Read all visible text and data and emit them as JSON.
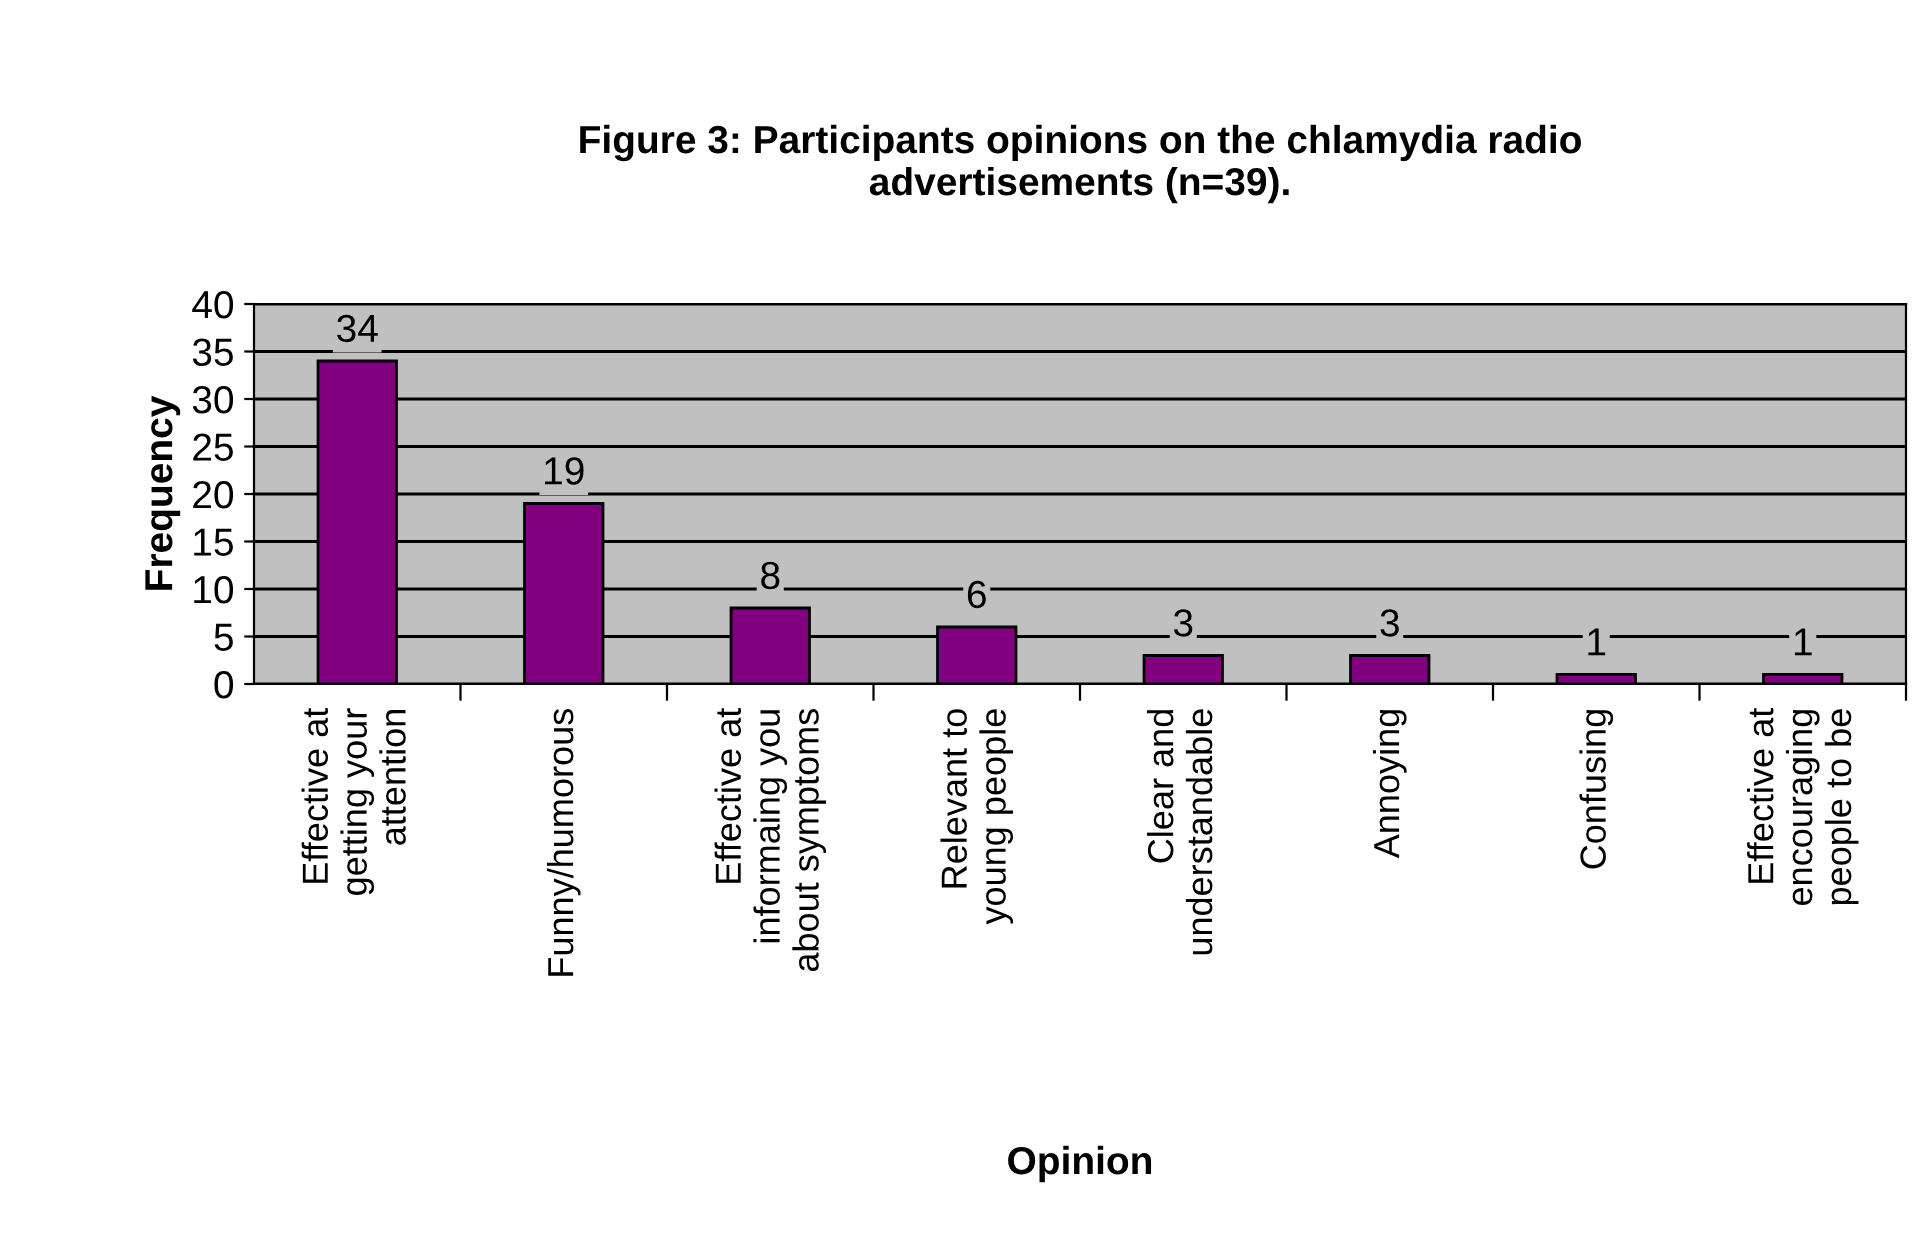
{
  "chart_data": {
    "type": "bar",
    "title": "Figure 3: Participants opinions on the chlamydia radio\nadvertisements (n=39).",
    "xlabel": "Opinion",
    "ylabel": "Frequency",
    "categories": [
      "Effective at\ngetting your\nattention",
      "Funny/humorous",
      "Effective at\ninformaing you\nabout symptoms",
      "Relevant to\nyoung people",
      "Clear and\nunderstandable",
      "Annoying",
      "Confusing",
      "Effective at\nencouraging\npeople to be"
    ],
    "values": [
      34,
      19,
      8,
      6,
      3,
      3,
      1,
      1
    ],
    "color": "#800080",
    "ylim": [
      0,
      40
    ],
    "yticks": [
      0,
      5,
      10,
      15,
      20,
      25,
      30,
      35,
      40
    ],
    "grid": "y",
    "data_labels": true,
    "legend": false
  }
}
